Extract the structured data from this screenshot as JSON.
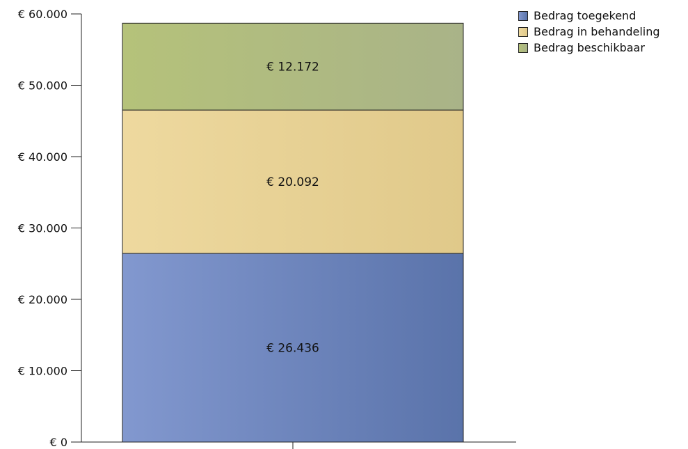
{
  "chart_data": {
    "type": "bar",
    "stacked": true,
    "categories": [
      ""
    ],
    "series": [
      {
        "name": "Bedrag toegekend",
        "values": [
          26436
        ],
        "label": "€ 26.436",
        "color": "#6f87c2",
        "color_start": "#8298cf",
        "color_end": "#5a73aa"
      },
      {
        "name": "Bedrag in behandeling",
        "values": [
          20092
        ],
        "label": "€ 20.092",
        "color": "#e6d197",
        "color_start": "#eed99f",
        "color_end": "#e0c98a"
      },
      {
        "name": "Bedrag beschikbaar",
        "values": [
          12172
        ],
        "label": "€ 12.172",
        "color": "#aab47c",
        "color_start": "#b5c27a",
        "color_end": "#a9b388"
      }
    ],
    "ylim": [
      0,
      60000
    ],
    "yticks": [
      0,
      10000,
      20000,
      30000,
      40000,
      50000,
      60000
    ],
    "ytick_labels": [
      "€ 0",
      "€ 10.000",
      "€ 20.000",
      "€ 30.000",
      "€ 40.000",
      "€ 50.000",
      "€ 60.000"
    ],
    "grid": false,
    "legend_position": "top-right",
    "title": "",
    "xlabel": "",
    "ylabel": ""
  }
}
